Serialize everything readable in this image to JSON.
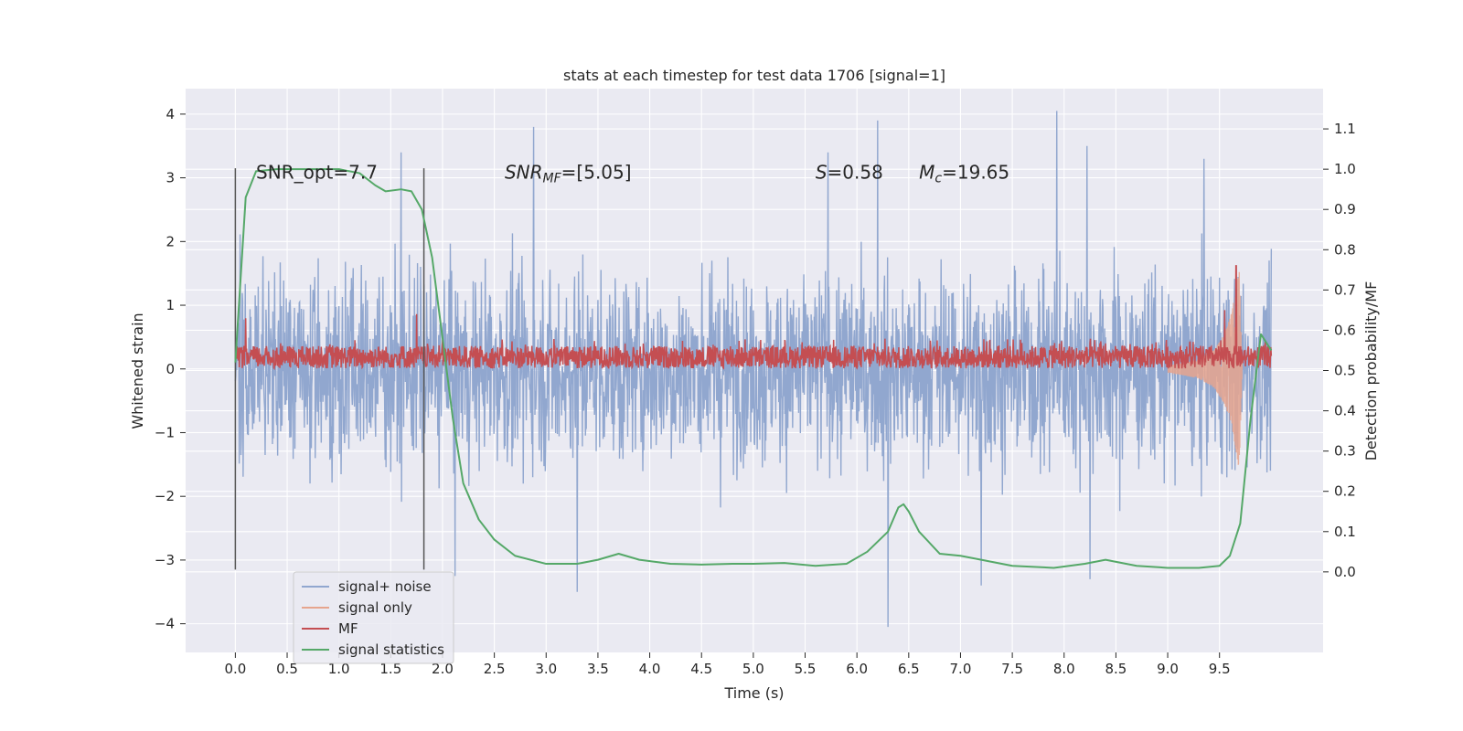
{
  "chart_data": {
    "type": "line",
    "title": "stats at each timestep for test data 1706 [signal=1]",
    "xlabel": "Time (s)",
    "ylabel": "Whitened strain",
    "ylabel_right": "Detection probability/MF",
    "xlim": [
      -0.48,
      10.5
    ],
    "ylim": [
      -4.45,
      4.4
    ],
    "ylim_right": [
      -0.2,
      1.2
    ],
    "x_ticks": [
      0.0,
      0.5,
      1.0,
      1.5,
      2.0,
      2.5,
      3.0,
      3.5,
      4.0,
      4.5,
      5.0,
      5.5,
      6.0,
      6.5,
      7.0,
      7.5,
      8.0,
      8.5,
      9.0,
      9.5
    ],
    "x_tick_labels": [
      "0.0",
      "0.5",
      "1.0",
      "1.5",
      "2.0",
      "2.5",
      "3.0",
      "3.5",
      "4.0",
      "4.5",
      "5.0",
      "5.5",
      "6.0",
      "6.5",
      "7.0",
      "7.5",
      "8.0",
      "8.5",
      "9.0",
      "9.5"
    ],
    "y_ticks": [
      -4,
      -3,
      -2,
      -1,
      0,
      1,
      2,
      3,
      4
    ],
    "y_tick_labels": [
      "−4",
      "−3",
      "−2",
      "−1",
      "0",
      "1",
      "2",
      "3",
      "4"
    ],
    "y_right_ticks": [
      0.0,
      0.1,
      0.2,
      0.3,
      0.4,
      0.5,
      0.6,
      0.7,
      0.8,
      0.9,
      1.0,
      1.1
    ],
    "y_right_tick_labels": [
      "0.0",
      "0.1",
      "0.2",
      "0.3",
      "0.4",
      "0.5",
      "0.6",
      "0.7",
      "0.8",
      "0.9",
      "1.0",
      "1.1"
    ],
    "grid": true,
    "legend_position": "lower-left",
    "annotations": [
      {
        "text": "SNR_opt=7.7",
        "x": 0.2,
        "y": 3.1
      },
      {
        "text": "SNR",
        "sub": "MF",
        "tail": "=[5.05]",
        "italic": true,
        "x": 2.6,
        "y": 3.1
      },
      {
        "text": "S",
        "tail": "=0.58",
        "italic": true,
        "x": 5.6,
        "y": 3.1
      },
      {
        "text": "M",
        "sub": "c",
        "tail": "=19.65",
        "italic": true,
        "x": 6.6,
        "y": 3.1
      }
    ],
    "vlines": [
      {
        "x": 0.0,
        "ymin": -3.15,
        "ymax": 3.15
      },
      {
        "x": 1.82,
        "ymin": -3.15,
        "ymax": 3.15
      }
    ],
    "series": [
      {
        "name": "signal+ noise",
        "axis": "left",
        "color": "#91a7cf",
        "description_range": [
          0.0,
          10.0
        ],
        "envelope": {
          "x": [
            0,
            2,
            4,
            6,
            8,
            10
          ],
          "low": [
            -2.6,
            -2.5,
            -2.5,
            -2.5,
            -2.5,
            -2.5
          ],
          "high": [
            2.6,
            2.5,
            2.5,
            2.5,
            2.5,
            2.6
          ]
        },
        "peaks": [
          {
            "x": 1.6,
            "y": 3.4
          },
          {
            "x": 2.88,
            "y": 3.8
          },
          {
            "x": 5.72,
            "y": 3.4
          },
          {
            "x": 6.2,
            "y": 3.9
          },
          {
            "x": 7.93,
            "y": 4.05
          },
          {
            "x": 8.22,
            "y": 3.5
          },
          {
            "x": 9.35,
            "y": 3.3
          },
          {
            "x": 3.3,
            "y": -3.5
          },
          {
            "x": 6.3,
            "y": -4.05
          },
          {
            "x": 2.12,
            "y": -3.25
          },
          {
            "x": 7.2,
            "y": -3.4
          },
          {
            "x": 8.25,
            "y": -3.3
          }
        ]
      },
      {
        "name": "signal only",
        "axis": "left",
        "color": "#e6a58e",
        "x": [
          9.0,
          9.3,
          9.45,
          9.55,
          9.62,
          9.66,
          9.69,
          9.72
        ],
        "amplitude": [
          0.05,
          0.15,
          0.3,
          0.55,
          0.9,
          1.3,
          1.6,
          0.0
        ]
      },
      {
        "name": "MF",
        "axis": "right",
        "color": "#c44e52",
        "x": [
          0.0,
          10.0
        ],
        "band": [
          0.505,
          0.58
        ],
        "peaks": [
          {
            "x": 0.1,
            "y": 0.63
          },
          {
            "x": 1.75,
            "y": 0.64
          },
          {
            "x": 9.55,
            "y": 0.65
          },
          {
            "x": 9.66,
            "y": 0.76
          }
        ]
      },
      {
        "name": "signal statistics",
        "axis": "right",
        "color": "#55a868",
        "x": [
          0.0,
          0.1,
          0.2,
          0.4,
          0.7,
          1.0,
          1.2,
          1.35,
          1.45,
          1.6,
          1.7,
          1.8,
          1.9,
          2.0,
          2.1,
          2.2,
          2.35,
          2.5,
          2.7,
          3.0,
          3.3,
          3.5,
          3.7,
          3.9,
          4.2,
          4.5,
          4.8,
          5.0,
          5.3,
          5.6,
          5.9,
          6.1,
          6.3,
          6.4,
          6.45,
          6.5,
          6.6,
          6.8,
          7.0,
          7.2,
          7.5,
          7.9,
          8.2,
          8.4,
          8.7,
          9.0,
          9.3,
          9.5,
          9.6,
          9.7,
          9.8,
          9.9,
          10.0
        ],
        "values": [
          0.52,
          0.93,
          0.995,
          1.0,
          1.0,
          1.0,
          0.99,
          0.96,
          0.945,
          0.95,
          0.945,
          0.9,
          0.78,
          0.58,
          0.38,
          0.22,
          0.13,
          0.08,
          0.04,
          0.02,
          0.02,
          0.03,
          0.045,
          0.03,
          0.02,
          0.018,
          0.02,
          0.02,
          0.022,
          0.015,
          0.02,
          0.05,
          0.1,
          0.16,
          0.168,
          0.15,
          0.1,
          0.045,
          0.04,
          0.03,
          0.015,
          0.01,
          0.02,
          0.03,
          0.015,
          0.01,
          0.01,
          0.015,
          0.04,
          0.12,
          0.38,
          0.59,
          0.55
        ]
      }
    ]
  }
}
